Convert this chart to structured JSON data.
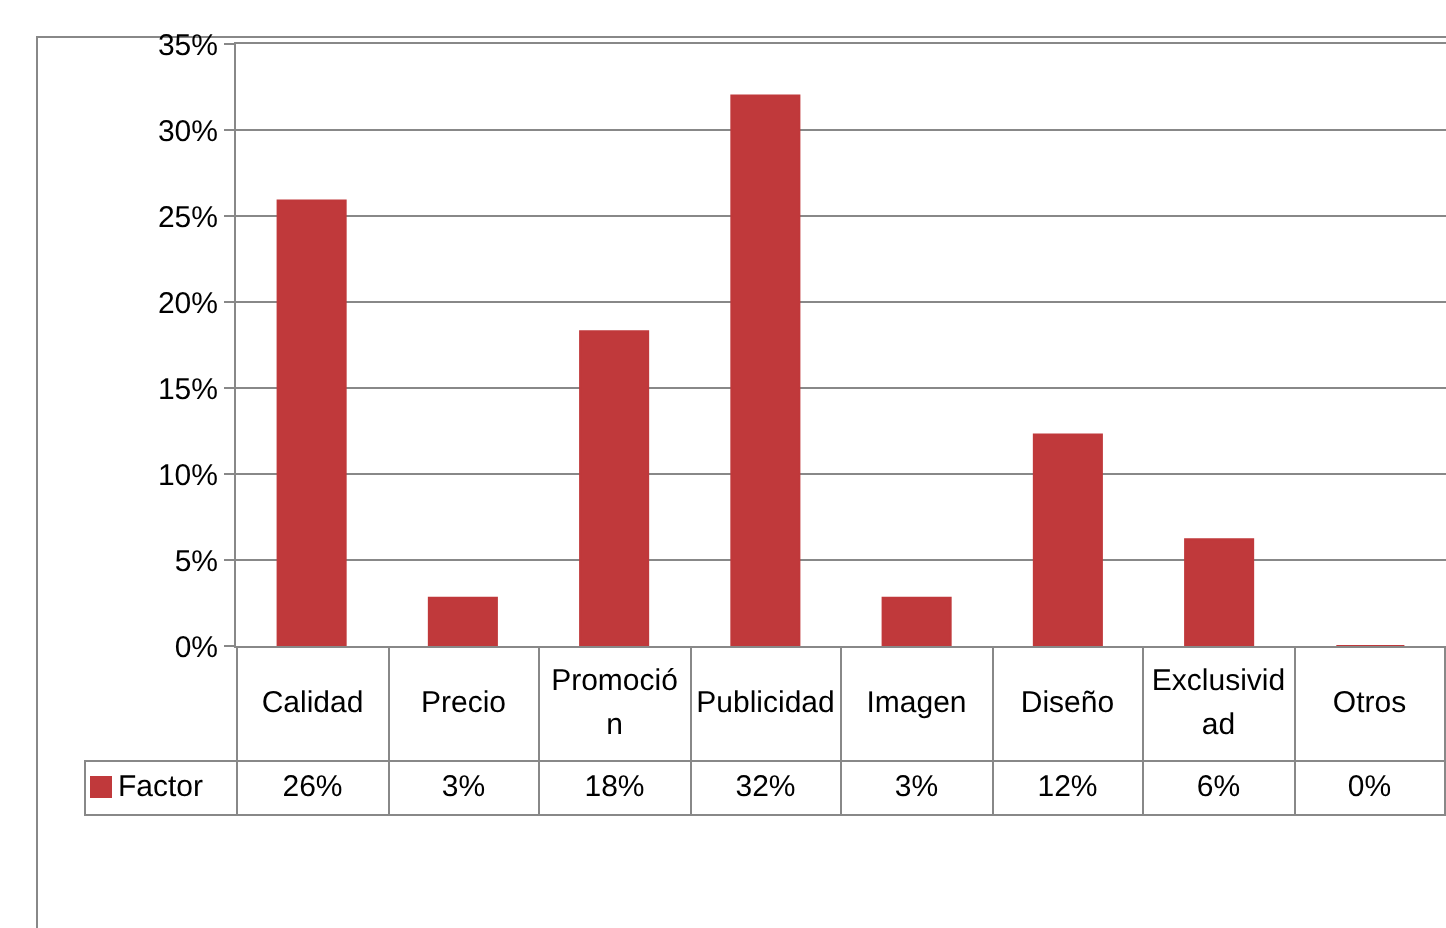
{
  "chart_data": {
    "type": "bar",
    "categories": [
      "Calidad",
      "Precio",
      "Promoción",
      "Publicidad",
      "Imagen",
      "Diseño",
      "Exclusividad",
      "Otros"
    ],
    "series": [
      {
        "name": "Factor",
        "color": "#c0393b",
        "values": [
          25.9,
          2.8,
          18.3,
          32,
          2.8,
          12.3,
          6.2,
          0
        ],
        "value_labels": [
          "26%",
          "3%",
          "18%",
          "32%",
          "3%",
          "12%",
          "6%",
          "0%"
        ]
      }
    ],
    "ylim": [
      0,
      35
    ],
    "yticks": [
      {
        "value": 0,
        "label": "0%"
      },
      {
        "value": 5,
        "label": "5%"
      },
      {
        "value": 10,
        "label": "10%"
      },
      {
        "value": 15,
        "label": "15%"
      },
      {
        "value": 20,
        "label": "20%"
      },
      {
        "value": 25,
        "label": "25%"
      },
      {
        "value": 30,
        "label": "30%"
      },
      {
        "value": 35,
        "label": "35%"
      }
    ],
    "grid": "y",
    "legend": "bottom"
  }
}
